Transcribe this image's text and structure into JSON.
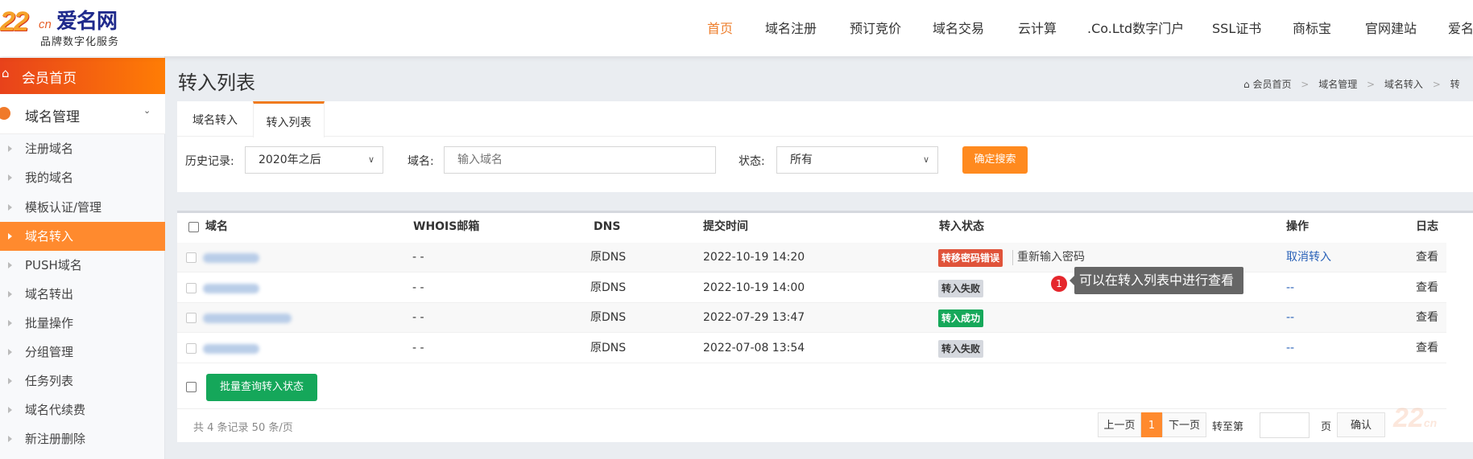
{
  "logo": {
    "mark": "22",
    "mark_suffix": "cn",
    "name": "爱名网",
    "tagline": "品牌数字化服务"
  },
  "nav": [
    {
      "label": "首页",
      "active": true
    },
    {
      "label": "域名注册"
    },
    {
      "label": "预订竞价"
    },
    {
      "label": "域名交易"
    },
    {
      "label": "云计算"
    },
    {
      "label": ".Co.Ltd数字门户"
    },
    {
      "label": "SSL证书"
    },
    {
      "label": "商标宝"
    },
    {
      "label": "官网建站"
    },
    {
      "label": "爱名"
    }
  ],
  "sidebar": {
    "home": "会员首页",
    "section": "域名管理",
    "items": [
      "注册域名",
      "我的域名",
      "模板认证/管理",
      "域名转入",
      "PUSH域名",
      "域名转出",
      "批量操作",
      "分组管理",
      "任务列表",
      "域名代续费",
      "新注册删除"
    ],
    "active_index": 3
  },
  "page": {
    "title": "转入列表"
  },
  "breadcrumb": [
    "会员首页",
    "域名管理",
    "域名转入",
    "转"
  ],
  "tabs": [
    {
      "label": "域名转入"
    },
    {
      "label": "转入列表",
      "active": true
    }
  ],
  "filters": {
    "history_label": "历史记录:",
    "history_value": "2020年之后",
    "domain_label": "域名:",
    "domain_placeholder": "输入域名",
    "status_label": "状态:",
    "status_value": "所有",
    "search_button": "确定搜索"
  },
  "table": {
    "headers": [
      "域名",
      "WHOIS邮箱",
      "DNS",
      "提交时间",
      "转入状态",
      "操作",
      "日志"
    ],
    "rows": [
      {
        "whois": "- -",
        "dns": "原DNS",
        "time": "2022-10-19 14:20",
        "status": "转移密码错误",
        "status_type": "error",
        "status_extra": "重新输入密码",
        "action": "取消转入",
        "log": "查看"
      },
      {
        "whois": "- -",
        "dns": "原DNS",
        "time": "2022-10-19 14:00",
        "status": "转入失败",
        "status_type": "fail",
        "status_extra": "",
        "action": "--",
        "log": "查看"
      },
      {
        "whois": "- -",
        "dns": "原DNS",
        "time": "2022-07-29 13:47",
        "status": "转入成功",
        "status_type": "success",
        "status_extra": "",
        "action": "--",
        "log": "查看"
      },
      {
        "whois": "- -",
        "dns": "原DNS",
        "time": "2022-07-08 13:54",
        "status": "转入失败",
        "status_type": "fail",
        "status_extra": "",
        "action": "--",
        "log": "查看"
      }
    ],
    "batch_button": "批量查询转入状态"
  },
  "tooltip": {
    "step": "1",
    "text": "可以在转入列表中进行查看"
  },
  "pagination": {
    "summary": "共 4 条记录 50 条/页",
    "prev": "上一页",
    "current": "1",
    "next": "下一页",
    "goto_label": "转至第",
    "goto_value": "",
    "page_unit": "页",
    "confirm": "确认"
  },
  "colors": {
    "accent": "#ff8a1f",
    "error": "#e0533a",
    "fail": "#d5d8de",
    "success": "#16a85a",
    "link": "#2a62b8"
  }
}
